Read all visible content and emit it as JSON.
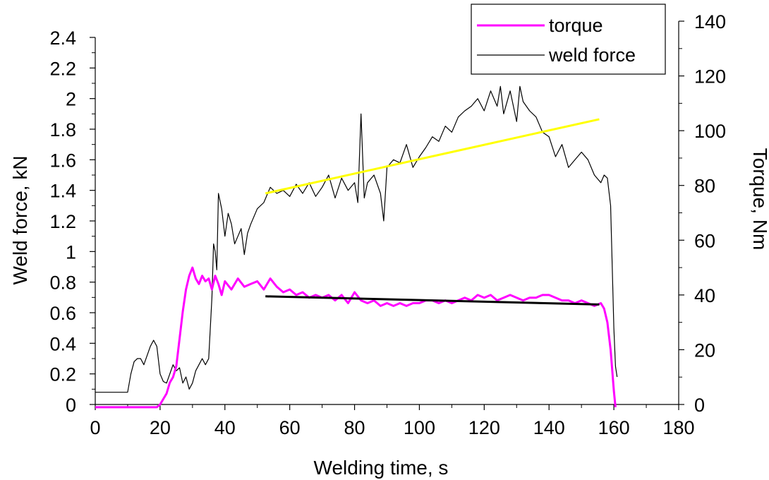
{
  "chart_data": {
    "type": "line",
    "xlabel": "Welding time, s",
    "ylabel_left": "Weld force, kN",
    "ylabel_right": "Torque, Nm",
    "xlim": [
      0,
      180
    ],
    "ylim_left": [
      0,
      2.4
    ],
    "ylim_right": [
      0,
      140
    ],
    "x_ticks": [
      0,
      20,
      40,
      60,
      80,
      100,
      120,
      140,
      160,
      180
    ],
    "x_tick_labels": [
      "0",
      "20",
      "40",
      "60",
      "80",
      "100",
      "120",
      "140",
      "160",
      "180"
    ],
    "y_left_ticks": [
      0,
      0.2,
      0.4,
      0.6,
      0.8,
      1,
      1.2,
      1.4,
      1.6,
      1.8,
      2,
      2.2,
      2.4
    ],
    "y_left_tick_labels": [
      "0",
      "0.2",
      "0.4",
      "0.6",
      "0.8",
      "1",
      "1.2",
      "1.4",
      "1.6",
      "1.8",
      "2",
      "2.2",
      "2.4"
    ],
    "y_right_ticks": [
      0,
      20,
      40,
      60,
      80,
      100,
      120,
      140
    ],
    "y_right_tick_labels": [
      "0",
      "20",
      "40",
      "60",
      "80",
      "100",
      "120",
      "140"
    ],
    "grid": false,
    "legend_position": "top-right",
    "series": [
      {
        "name": "torque",
        "axis": "right",
        "color": "#ff00ff",
        "x": [
          0,
          19,
          20,
          21,
          22,
          23,
          24,
          25,
          26,
          27,
          28,
          29,
          30,
          31,
          32,
          33,
          34,
          35,
          36,
          37,
          38,
          39,
          40,
          42,
          44,
          46,
          48,
          50,
          52,
          54,
          56,
          58,
          60,
          62,
          64,
          66,
          68,
          70,
          72,
          74,
          76,
          78,
          80,
          82,
          84,
          86,
          88,
          90,
          92,
          94,
          96,
          98,
          100,
          102,
          104,
          106,
          108,
          110,
          112,
          114,
          116,
          118,
          120,
          122,
          124,
          126,
          128,
          130,
          132,
          134,
          136,
          138,
          140,
          142,
          144,
          146,
          148,
          150,
          152,
          154,
          156,
          157,
          158,
          159,
          160,
          160.5
        ],
        "y": [
          -1,
          -1,
          0,
          2,
          4,
          8,
          10,
          14,
          24,
          34,
          42,
          47,
          50,
          46,
          44,
          47,
          45,
          46,
          42,
          47,
          44,
          40,
          45,
          42,
          46,
          43,
          44,
          45,
          42,
          46,
          43,
          41,
          42,
          40,
          41,
          39,
          40,
          39,
          40,
          38,
          40,
          37,
          41,
          38,
          37,
          38,
          36,
          37,
          36,
          37,
          36,
          37,
          37,
          38,
          38,
          37,
          38,
          37,
          38,
          39,
          38,
          40,
          39,
          40,
          38,
          39,
          40,
          39,
          38,
          39,
          39,
          40,
          40,
          39,
          38,
          38,
          37,
          38,
          37,
          36,
          37,
          35,
          30,
          20,
          5,
          -1
        ]
      },
      {
        "name": "weld force",
        "axis": "left",
        "color": "#000000",
        "x": [
          0,
          10,
          11,
          12,
          13,
          14,
          15,
          16,
          17,
          18,
          19,
          20,
          21,
          22,
          23,
          24,
          25,
          26,
          27,
          28,
          29,
          30,
          31,
          32,
          33,
          34,
          35,
          36,
          36.5,
          37,
          37.5,
          38,
          39,
          40,
          41,
          42,
          43,
          44,
          45,
          46,
          47,
          48,
          50,
          52,
          54,
          56,
          58,
          60,
          62,
          64,
          66,
          68,
          70,
          72,
          74,
          76,
          78,
          80,
          81,
          82,
          83,
          84,
          86,
          88,
          89,
          90,
          92,
          94,
          96,
          98,
          100,
          102,
          104,
          106,
          108,
          110,
          112,
          114,
          116,
          118,
          120,
          122,
          124,
          125,
          126,
          128,
          130,
          131,
          132,
          134,
          136,
          138,
          140,
          142,
          144,
          146,
          148,
          150,
          152,
          154,
          156,
          157,
          158,
          159,
          160,
          160.5,
          161
        ],
        "y": [
          0.08,
          0.08,
          0.2,
          0.28,
          0.3,
          0.3,
          0.26,
          0.32,
          0.38,
          0.42,
          0.38,
          0.2,
          0.15,
          0.14,
          0.2,
          0.26,
          0.22,
          0.24,
          0.14,
          0.18,
          0.1,
          0.14,
          0.22,
          0.26,
          0.3,
          0.26,
          0.3,
          0.7,
          1.05,
          1.0,
          0.88,
          1.38,
          1.28,
          1.1,
          1.25,
          1.18,
          1.05,
          1.1,
          1.15,
          0.98,
          1.12,
          1.18,
          1.28,
          1.32,
          1.42,
          1.38,
          1.4,
          1.36,
          1.44,
          1.38,
          1.45,
          1.36,
          1.42,
          1.5,
          1.35,
          1.48,
          1.4,
          1.45,
          1.32,
          1.9,
          1.35,
          1.45,
          1.5,
          1.38,
          1.2,
          1.55,
          1.6,
          1.58,
          1.7,
          1.55,
          1.62,
          1.68,
          1.75,
          1.72,
          1.82,
          1.78,
          1.88,
          1.92,
          1.95,
          2.0,
          1.92,
          2.05,
          1.95,
          2.08,
          1.9,
          2.05,
          1.85,
          2.08,
          1.98,
          1.92,
          1.88,
          1.78,
          1.75,
          1.62,
          1.7,
          1.55,
          1.6,
          1.65,
          1.6,
          1.5,
          1.45,
          1.5,
          1.48,
          1.3,
          0.5,
          0.25,
          0.18
        ]
      }
    ],
    "fit_lines": [
      {
        "color": "#ffff00",
        "axis": "left",
        "x": [
          52.5,
          155.5
        ],
        "y": [
          1.38,
          1.865
        ]
      },
      {
        "color": "#000000",
        "axis": "right",
        "x": [
          52.5,
          155.5
        ],
        "y": [
          39.5,
          36.5
        ]
      }
    ]
  },
  "legend": {
    "items": [
      {
        "label": "torque",
        "color": "#ff00ff"
      },
      {
        "label": "weld force",
        "color": "#000000"
      }
    ]
  }
}
